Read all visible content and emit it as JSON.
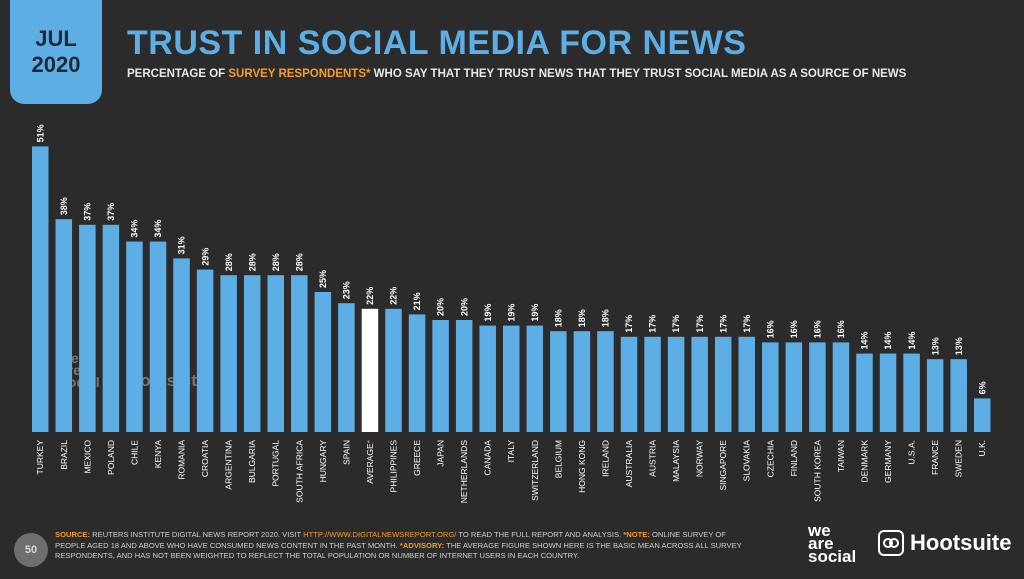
{
  "header": {
    "date_month": "JUL",
    "date_year": "2020",
    "title": "TRUST IN SOCIAL MEDIA FOR NEWS",
    "subtitle_pre": "PERCENTAGE OF ",
    "subtitle_highlight": "SURVEY RESPONDENTS*",
    "subtitle_post": " WHO SAY THAT THEY TRUST NEWS THAT THEY TRUST SOCIAL MEDIA AS A SOURCE OF NEWS"
  },
  "colors": {
    "background": "#2b2b2b",
    "bar": "#5eaee6",
    "highlight_bar": "#ffffff",
    "accent": "#f59c2a"
  },
  "chart_data": {
    "type": "bar",
    "title": "TRUST IN SOCIAL MEDIA FOR NEWS",
    "xlabel": "",
    "ylabel": "",
    "ylim": [
      0,
      55
    ],
    "grid": false,
    "value_suffix": "%",
    "highlight_category": "AVERAGE*",
    "categories": [
      "TURKEY",
      "BRAZIL",
      "MEXICO",
      "POLAND",
      "CHILE",
      "KENYA",
      "ROMANIA",
      "CROATIA",
      "ARGENTINA",
      "BULGARIA",
      "PORTUGAL",
      "SOUTH AFRICA",
      "HUNGARY",
      "SPAIN",
      "AVERAGE*",
      "PHILIPPINES",
      "GREECE",
      "JAPAN",
      "NETHERLANDS",
      "CANADA",
      "ITALY",
      "SWITZERLAND",
      "BELGIUM",
      "HONG KONG",
      "IRELAND",
      "AUSTRALIA",
      "AUSTRIA",
      "MALAYSIA",
      "NORWAY",
      "SINGAPORE",
      "SLOVAKIA",
      "CZECHIA",
      "FINLAND",
      "SOUTH KOREA",
      "TAIWAN",
      "DENMARK",
      "GERMANY",
      "U.S.A.",
      "FRANCE",
      "SWEDEN",
      "U.K."
    ],
    "values": [
      51,
      38,
      37,
      37,
      34,
      34,
      31,
      29,
      28,
      28,
      28,
      28,
      25,
      23,
      22,
      22,
      21,
      20,
      20,
      19,
      19,
      19,
      18,
      18,
      18,
      17,
      17,
      17,
      17,
      17,
      17,
      16,
      16,
      16,
      16,
      14,
      14,
      14,
      13,
      13,
      6
    ]
  },
  "footer": {
    "page_number": "50",
    "source_label": "SOURCE:",
    "source_text": " REUTERS INSTITUTE DIGITAL NEWS REPORT 2020. VISIT ",
    "source_url": "HTTP://WWW.DIGITALNEWSREPORT.ORG/",
    "source_text2": " TO READ THE FULL REPORT AND ANALYSIS. ",
    "note_label": "*NOTE:",
    "note_text": " ONLINE SURVEY OF PEOPLE AGED 18 AND ABOVE WHO HAVE CONSUMED NEWS CONTENT IN THE PAST MONTH. ",
    "advisory_label": "*ADVISORY:",
    "advisory_text": " THE AVERAGE FIGURE SHOWN HERE IS THE BASIC MEAN ACROSS ALL SURVEY RESPONDENTS, AND HAS NOT BEEN WEIGHTED TO REFLECT THE TOTAL POPULATION OR NUMBER OF INTERNET USERS IN EACH COUNTRY."
  },
  "branding": {
    "we_are_social": [
      "we",
      "are",
      "social"
    ],
    "hootsuite": "Hootsuite"
  }
}
